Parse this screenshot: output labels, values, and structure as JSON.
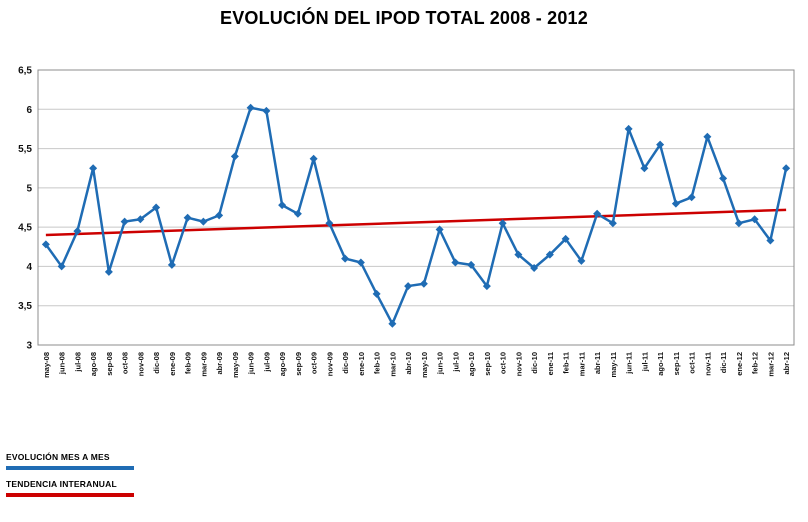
{
  "title": "EVOLUCIÓN DEL IPOD TOTAL 2008 - 2012",
  "legend": {
    "series1": "EVOLUCIÓN MES A MES",
    "series2": "TENDENCIA INTERANUAL"
  },
  "colors": {
    "series": "#1F6CB4",
    "trend": "#CC0000",
    "grid": "#C8C8C8",
    "axis": "#8C8C8C",
    "text": "#111111"
  },
  "chart_data": {
    "type": "line",
    "title": "EVOLUCIÓN DEL IPOD TOTAL 2008 - 2012",
    "categories": [
      "may-08",
      "jun-08",
      "jul-08",
      "ago-08",
      "sep-08",
      "oct-08",
      "nov-08",
      "dic-08",
      "ene-09",
      "feb-09",
      "mar-09",
      "abr-09",
      "may-09",
      "jun-09",
      "jul-09",
      "ago-09",
      "sep-09",
      "oct-09",
      "nov-09",
      "dic-09",
      "ene-10",
      "feb-10",
      "mar-10",
      "abr-10",
      "may-10",
      "jun-10",
      "jul-10",
      "ago-10",
      "sep-10",
      "oct-10",
      "nov-10",
      "dic-10",
      "ene-11",
      "feb-11",
      "mar-11",
      "abr-11",
      "may-11",
      "jun-11",
      "jul-11",
      "ago-11",
      "sep-11",
      "oct-11",
      "nov-11",
      "dic-11",
      "ene-12",
      "feb-12",
      "mar-12",
      "abr-12"
    ],
    "series": [
      {
        "name": "EVOLUCIÓN MES A MES",
        "color": "#1F6CB4",
        "values": [
          4.28,
          4.0,
          4.45,
          5.25,
          3.93,
          4.57,
          4.6,
          4.75,
          4.02,
          4.62,
          4.57,
          4.65,
          5.4,
          6.02,
          5.98,
          4.78,
          4.67,
          5.37,
          4.55,
          4.1,
          4.05,
          3.65,
          3.27,
          3.75,
          3.78,
          4.47,
          4.05,
          4.02,
          3.75,
          4.55,
          4.15,
          3.98,
          4.15,
          4.35,
          4.07,
          4.67,
          4.55,
          5.75,
          5.25,
          5.55,
          4.8,
          4.88,
          5.65,
          5.12,
          4.55,
          4.6,
          4.33,
          5.25
        ]
      },
      {
        "name": "TENDENCIA INTERANUAL",
        "color": "#CC0000",
        "type": "trend",
        "start": 4.4,
        "end": 4.72
      }
    ],
    "ylim": [
      3,
      6.5
    ],
    "ytick_step": 0.5,
    "ytick_labels": [
      "3",
      "3,5",
      "4",
      "4,5",
      "5",
      "5,5",
      "6",
      "6,5"
    ],
    "xlabel": "",
    "ylabel": "",
    "grid": true,
    "legend_position": "bottom-left"
  }
}
